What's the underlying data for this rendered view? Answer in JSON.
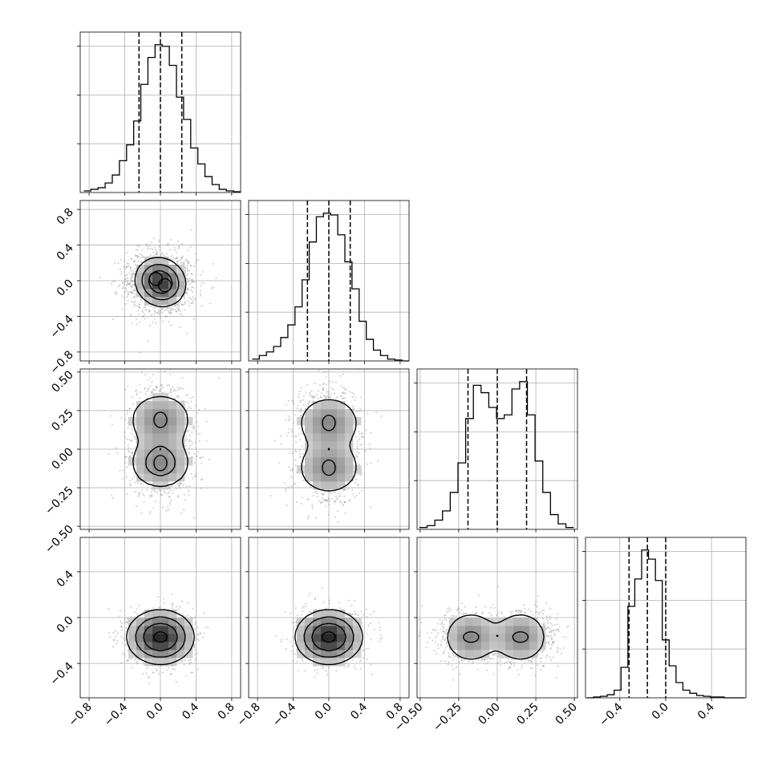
{
  "chart_data": {
    "type": "corner",
    "description_scope": "4-parameter corner plot: diagonal 1D histograms with dashed quantile lines, lower-triangle 2D density panels with contours and scatter points",
    "quantiles": [
      0.16,
      0.5,
      0.84
    ],
    "grid": true,
    "parameters": [
      {
        "index": 0,
        "range": [
          -0.9,
          0.9
        ],
        "ticks": [
          -0.8,
          -0.4,
          0.0,
          0.4,
          0.8
        ],
        "tick_labels": [
          "−0.8",
          "−0.4",
          "0.0",
          "0.4",
          "0.8"
        ],
        "quantile_lines": [
          -0.24,
          0.0,
          0.24
        ],
        "histogram": {
          "bin_centers": [
            -0.82,
            -0.74,
            -0.66,
            -0.58,
            -0.5,
            -0.42,
            -0.34,
            -0.26,
            -0.18,
            -0.1,
            -0.02,
            0.06,
            0.14,
            0.22,
            0.3,
            0.38,
            0.46,
            0.54,
            0.62,
            0.7,
            0.78,
            0.86
          ],
          "counts": [
            0.01,
            0.02,
            0.03,
            0.06,
            0.11,
            0.2,
            0.3,
            0.45,
            0.68,
            0.85,
            0.93,
            0.92,
            0.8,
            0.6,
            0.46,
            0.28,
            0.18,
            0.1,
            0.05,
            0.02,
            0.01,
            0.005
          ]
        }
      },
      {
        "index": 1,
        "range": [
          -0.9,
          0.9
        ],
        "ticks": [
          -0.8,
          -0.4,
          0.0,
          0.4,
          0.8
        ],
        "tick_labels": [
          "−0.8",
          "−0.4",
          "0.0",
          "0.4",
          "0.8"
        ],
        "quantile_lines": [
          -0.24,
          0.0,
          0.24
        ],
        "histogram": {
          "bin_centers": [
            -0.82,
            -0.74,
            -0.66,
            -0.58,
            -0.5,
            -0.42,
            -0.34,
            -0.26,
            -0.18,
            -0.1,
            -0.02,
            0.06,
            0.14,
            0.22,
            0.3,
            0.38,
            0.46,
            0.54,
            0.62,
            0.7,
            0.78,
            0.86
          ],
          "counts": [
            0.01,
            0.03,
            0.05,
            0.08,
            0.13,
            0.2,
            0.3,
            0.45,
            0.66,
            0.8,
            0.82,
            0.81,
            0.7,
            0.55,
            0.4,
            0.22,
            0.12,
            0.06,
            0.03,
            0.01,
            0.005,
            0.0
          ]
        }
      },
      {
        "index": 2,
        "range": [
          -0.52,
          0.52
        ],
        "ticks": [
          -0.5,
          -0.25,
          0.0,
          0.25,
          0.5
        ],
        "tick_labels": [
          "−0.50",
          "−0.25",
          "0.00",
          "0.25",
          "0.50"
        ],
        "quantile_lines": [
          -0.19,
          0.0,
          0.19
        ],
        "histogram": {
          "bin_centers": [
            -0.48,
            -0.43,
            -0.38,
            -0.33,
            -0.28,
            -0.23,
            -0.18,
            -0.13,
            -0.08,
            -0.03,
            0.02,
            0.07,
            0.12,
            0.17,
            0.22,
            0.27,
            0.32,
            0.37,
            0.42,
            0.47
          ],
          "counts": [
            0.01,
            0.02,
            0.05,
            0.1,
            0.2,
            0.36,
            0.6,
            0.78,
            0.74,
            0.66,
            0.6,
            0.62,
            0.76,
            0.8,
            0.62,
            0.37,
            0.2,
            0.08,
            0.03,
            0.01
          ]
        }
      },
      {
        "index": 3,
        "range": [
          -0.7,
          0.7
        ],
        "ticks": [
          -0.4,
          0.0,
          0.4
        ],
        "tick_labels": [
          "−0.4",
          "0.0",
          "0.4"
        ],
        "quantile_lines": [
          -0.32,
          -0.16,
          0.0
        ],
        "histogram": {
          "bin_centers": [
            -0.66,
            -0.6,
            -0.54,
            -0.48,
            -0.42,
            -0.36,
            -0.3,
            -0.24,
            -0.18,
            -0.12,
            -0.06,
            0.0,
            0.06,
            0.12,
            0.18,
            0.24,
            0.3,
            0.36,
            0.42,
            0.48,
            0.54,
            0.6,
            0.66
          ],
          "counts": [
            0.0,
            0.005,
            0.01,
            0.02,
            0.05,
            0.2,
            0.6,
            0.78,
            0.97,
            0.91,
            0.77,
            0.38,
            0.21,
            0.1,
            0.05,
            0.03,
            0.015,
            0.01,
            0.005,
            0.005,
            0.0,
            0.0,
            0.0
          ]
        }
      }
    ],
    "pairs": [
      {
        "x": 0,
        "y": 1,
        "mean": [
          0.0,
          0.0
        ],
        "std": [
          0.19,
          0.19
        ],
        "modes": [
          [
            -0.05,
            0.02
          ],
          [
            0.05,
            -0.05
          ]
        ]
      },
      {
        "x": 0,
        "y": 2,
        "mean": [
          0.0,
          0.0
        ],
        "std": [
          0.19,
          0.13
        ],
        "modes": [
          [
            0.0,
            0.19
          ],
          [
            0.0,
            -0.09
          ]
        ]
      },
      {
        "x": 1,
        "y": 2,
        "mean": [
          0.0,
          0.0
        ],
        "std": [
          0.19,
          0.13
        ],
        "modes": [
          [
            0.0,
            0.17
          ],
          [
            0.0,
            -0.12
          ]
        ]
      },
      {
        "x": 0,
        "y": 3,
        "mean": [
          0.0,
          -0.16
        ],
        "std": [
          0.19,
          0.12
        ],
        "modes": [
          [
            0.0,
            -0.17
          ]
        ]
      },
      {
        "x": 1,
        "y": 3,
        "mean": [
          0.0,
          -0.16
        ],
        "std": [
          0.19,
          0.12
        ],
        "modes": [
          [
            0.0,
            -0.17
          ]
        ]
      },
      {
        "x": 2,
        "y": 3,
        "mean": [
          0.0,
          -0.16
        ],
        "std": [
          0.13,
          0.12
        ],
        "modes": [
          [
            -0.17,
            -0.17
          ],
          [
            0.15,
            -0.17
          ]
        ]
      }
    ]
  }
}
